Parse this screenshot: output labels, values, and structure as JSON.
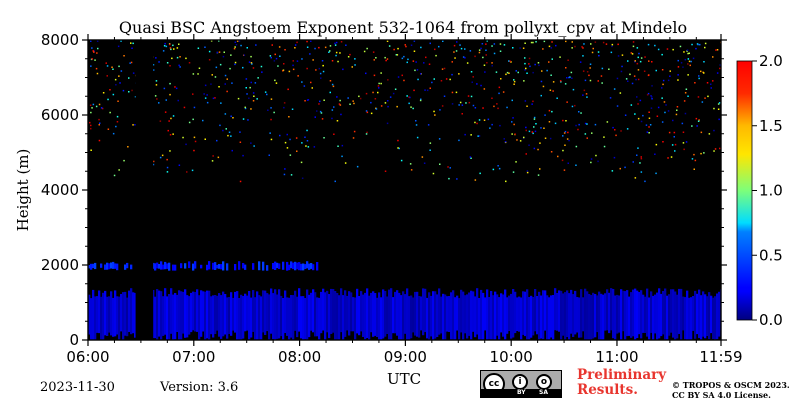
{
  "chart_data": {
    "type": "heatmap",
    "title": "Quasi BSC Angstoem Exponent 532-1064 from pollyxt_cpv at Mindelo",
    "xlabel": "UTC",
    "ylabel": "Height (m)",
    "x_ticks": [
      "06:00",
      "07:00",
      "08:00",
      "09:00",
      "10:00",
      "11:00",
      "11:59"
    ],
    "x_range": [
      "06:00",
      "11:59"
    ],
    "y_ticks": [
      0,
      2000,
      4000,
      6000,
      8000
    ],
    "ylim": [
      0,
      8000
    ],
    "colorbar": {
      "range": [
        0.0,
        2.0
      ],
      "ticks": [
        "0.0",
        "0.5",
        "1.0",
        "1.5",
        "2.0"
      ],
      "colormap": "jet"
    },
    "background_color": "#000000",
    "data_gaps": [
      {
        "start": "06:27",
        "end": "06:37"
      }
    ],
    "features": [
      {
        "label": "aerosol layer",
        "time_start": "06:00",
        "time_end": "11:59",
        "height_bottom_m": 150,
        "height_top_m": 1250,
        "value_approx": 0.15
      },
      {
        "label": "elevated thin layer",
        "time_start": "06:00",
        "time_end": "08:10",
        "height_bottom_m": 1900,
        "height_top_m": 2050,
        "value_approx": 0.3
      },
      {
        "label": "upper-level noise",
        "time_start": "06:00",
        "time_end": "11:59",
        "height_bottom_m": 4200,
        "height_top_m": 8000,
        "value_approx": "0.0-2.0"
      }
    ]
  },
  "footer": {
    "date": "2023-11-30",
    "version": "Version: 3.6",
    "preliminary_line1": "Preliminary",
    "preliminary_line2": "Results.",
    "copyright_line1": "© TROPOS & OSCM 2023.",
    "copyright_line2": "CC BY SA 4.0 License.",
    "license_badge": {
      "cc": "cc",
      "by": "BY",
      "sa": "SA"
    }
  }
}
